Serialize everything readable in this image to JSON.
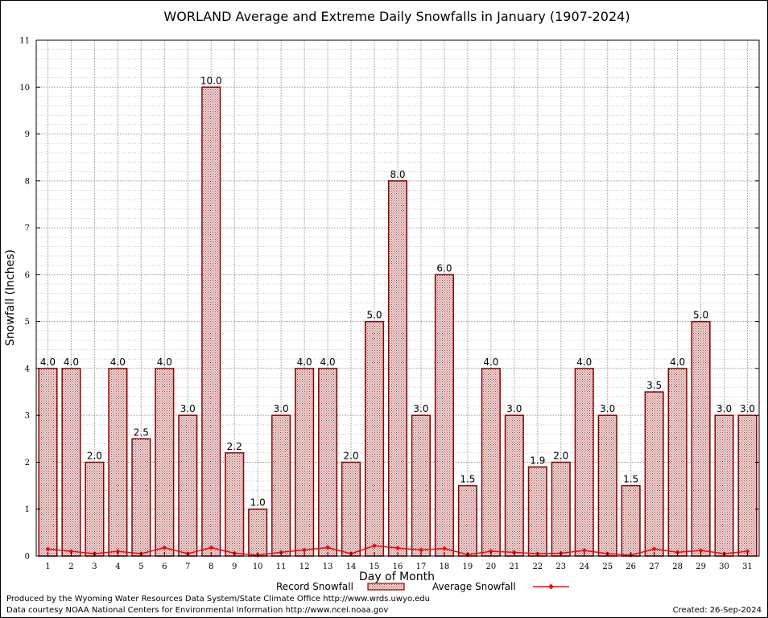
{
  "chart_data": {
    "type": "bar",
    "title": "WORLAND Average and Extreme Daily Snowfalls in January (1907-2024)",
    "xlabel": "Day of Month",
    "ylabel": "Snowfall (Inches)",
    "ylim": [
      0,
      11
    ],
    "yticks": [
      "0",
      "1",
      "2",
      "3",
      "4",
      "5",
      "6",
      "7",
      "8",
      "9",
      "10",
      "11"
    ],
    "categories": [
      "1",
      "2",
      "3",
      "4",
      "5",
      "6",
      "7",
      "8",
      "9",
      "10",
      "11",
      "12",
      "13",
      "14",
      "15",
      "16",
      "17",
      "18",
      "19",
      "20",
      "21",
      "22",
      "23",
      "24",
      "25",
      "26",
      "27",
      "28",
      "29",
      "30",
      "31"
    ],
    "series": [
      {
        "name": "Record Snowfall",
        "kind": "bar",
        "values": [
          4.0,
          4.0,
          2.0,
          4.0,
          2.5,
          4.0,
          3.0,
          10.0,
          2.2,
          1.0,
          3.0,
          4.0,
          4.0,
          2.0,
          5.0,
          8.0,
          3.0,
          6.0,
          1.5,
          4.0,
          3.0,
          1.9,
          2.0,
          4.0,
          3.0,
          1.5,
          3.5,
          4.0,
          5.0,
          3.0,
          3.0
        ],
        "labels": [
          "4.0",
          "4.0",
          "2.0",
          "4.0",
          "2.5",
          "4.0",
          "3.0",
          "10.0",
          "2.2",
          "1.0",
          "3.0",
          "4.0",
          "4.0",
          "2.0",
          "5.0",
          "8.0",
          "3.0",
          "6.0",
          "1.5",
          "4.0",
          "3.0",
          "1.9",
          "2.0",
          "4.0",
          "3.0",
          "1.5",
          "3.5",
          "4.0",
          "5.0",
          "3.0",
          "3.0"
        ]
      },
      {
        "name": "Average Snowfall",
        "kind": "line",
        "values": [
          0.15,
          0.1,
          0.05,
          0.1,
          0.05,
          0.18,
          0.05,
          0.18,
          0.06,
          0.02,
          0.08,
          0.13,
          0.18,
          0.05,
          0.22,
          0.17,
          0.13,
          0.16,
          0.03,
          0.1,
          0.08,
          0.05,
          0.06,
          0.12,
          0.05,
          0.02,
          0.15,
          0.08,
          0.12,
          0.05,
          0.1
        ]
      }
    ],
    "grid": true,
    "legend": "bottom-center",
    "colors": {
      "bar_fill": "#e8bcbc",
      "bar_edge": "#8b0000",
      "line": "#ff0000",
      "grid": "#a0a0a0"
    }
  },
  "footer": {
    "credit_line1": "Produced by the Wyoming Water Resources Data System/State Climate Office http://www.wrds.uwyo.edu",
    "credit_line2": "Data courtesy NOAA National Centers for Environmental Information http://www.ncei.noaa.gov",
    "created": "Created:  26-Sep-2024"
  }
}
